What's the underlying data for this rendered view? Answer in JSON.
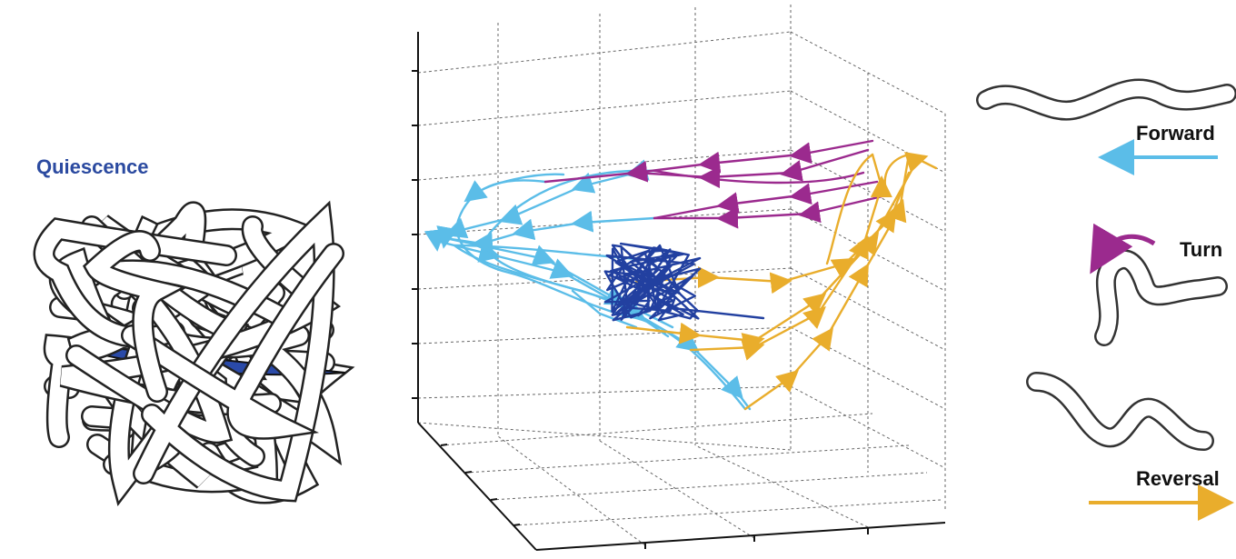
{
  "labels": {
    "quiescence": "Quiescence",
    "forward": "Forward",
    "turn": "Turn",
    "reversal": "Reversal"
  }
}
